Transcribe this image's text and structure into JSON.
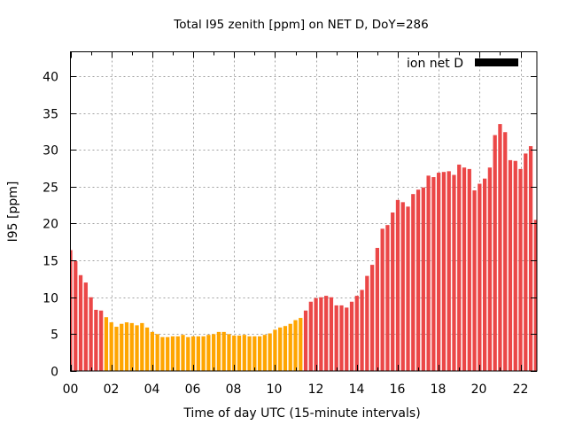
{
  "chart_data": {
    "type": "bar",
    "title": "Total I95 zenith [ppm] on NET D, DoY=286",
    "xlabel": "Time of day UTC (15-minute intervals)",
    "ylabel": "I95 [ppm]",
    "xlim": [
      0,
      22.8
    ],
    "ylim": [
      0,
      43.3
    ],
    "grid": true,
    "legend": {
      "label": "ion net D",
      "position": "top-right",
      "swatch_color": "#000000"
    },
    "x_ticks": [
      {
        "value": 0,
        "label": "00"
      },
      {
        "value": 2,
        "label": "02"
      },
      {
        "value": 4,
        "label": "04"
      },
      {
        "value": 6,
        "label": "06"
      },
      {
        "value": 8,
        "label": "08"
      },
      {
        "value": 10,
        "label": "10"
      },
      {
        "value": 12,
        "label": "12"
      },
      {
        "value": 14,
        "label": "14"
      },
      {
        "value": 16,
        "label": "16"
      },
      {
        "value": 18,
        "label": "18"
      },
      {
        "value": 20,
        "label": "20"
      },
      {
        "value": 22,
        "label": "22"
      }
    ],
    "y_ticks": [
      {
        "value": 0,
        "label": "0"
      },
      {
        "value": 5,
        "label": "5"
      },
      {
        "value": 10,
        "label": "10"
      },
      {
        "value": 15,
        "label": "15"
      },
      {
        "value": 20,
        "label": "20"
      },
      {
        "value": 25,
        "label": "25"
      },
      {
        "value": 30,
        "label": "30"
      },
      {
        "value": 35,
        "label": "35"
      },
      {
        "value": 40,
        "label": "40"
      }
    ],
    "bar_step_hours": 0.25,
    "colors": {
      "high": "#eb4747",
      "low": "#ffa500"
    },
    "values": [
      16.4,
      14.9,
      13.0,
      12.0,
      10.0,
      8.3,
      8.2,
      7.3,
      6.6,
      6.0,
      6.4,
      6.6,
      6.5,
      6.2,
      6.5,
      5.9,
      5.3,
      5.0,
      4.6,
      4.6,
      4.7,
      4.7,
      4.9,
      4.6,
      4.7,
      4.7,
      4.7,
      4.9,
      5.0,
      5.3,
      5.3,
      5.0,
      4.8,
      4.8,
      4.9,
      4.7,
      4.7,
      4.7,
      4.9,
      5.1,
      5.6,
      5.9,
      6.1,
      6.4,
      6.9,
      7.2,
      8.2,
      9.4,
      9.9,
      10.0,
      10.2,
      10.0,
      8.9,
      8.9,
      8.6,
      9.4,
      10.2,
      11.0,
      12.9,
      14.4,
      16.7,
      19.3,
      19.8,
      21.5,
      23.2,
      22.9,
      22.3,
      24.0,
      24.6,
      24.9,
      26.5,
      26.3,
      26.9,
      27.0,
      27.1,
      26.6,
      28.0,
      27.6,
      27.4,
      24.5,
      25.4,
      26.1,
      27.6,
      32.0,
      33.5,
      32.4,
      28.6,
      28.5,
      27.4,
      29.5,
      30.5,
      20.5
    ],
    "bar_color_class": [
      "high",
      "high",
      "high",
      "high",
      "high",
      "high",
      "high",
      "low",
      "low",
      "low",
      "low",
      "low",
      "low",
      "low",
      "low",
      "low",
      "low",
      "low",
      "low",
      "low",
      "low",
      "low",
      "low",
      "low",
      "low",
      "low",
      "low",
      "low",
      "low",
      "low",
      "low",
      "low",
      "low",
      "low",
      "low",
      "low",
      "low",
      "low",
      "low",
      "low",
      "low",
      "low",
      "low",
      "low",
      "low",
      "low",
      "high",
      "high",
      "high",
      "high",
      "high",
      "high",
      "high",
      "high",
      "high",
      "high",
      "high",
      "high",
      "high",
      "high",
      "high",
      "high",
      "high",
      "high",
      "high",
      "high",
      "high",
      "high",
      "high",
      "high",
      "high",
      "high",
      "high",
      "high",
      "high",
      "high",
      "high",
      "high",
      "high",
      "high",
      "high",
      "high",
      "high",
      "high",
      "high",
      "high",
      "high",
      "high",
      "high",
      "high",
      "high",
      "high"
    ]
  }
}
